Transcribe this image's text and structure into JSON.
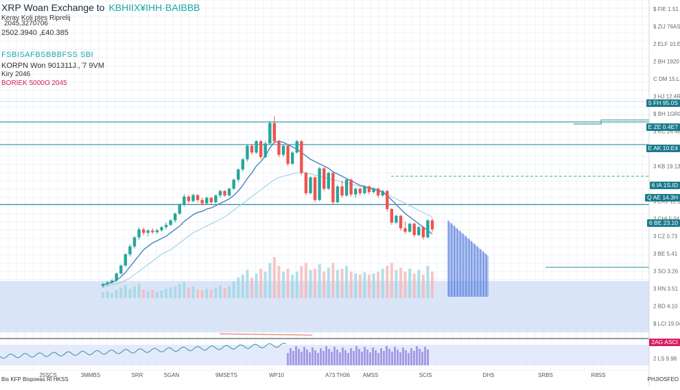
{
  "header": {
    "title": "XRP Woan  Exchange to",
    "title_accent": "KBHIIX¥IHH·BAIBBB",
    "line2": "2045,3270706",
    "line3": "2502.3940 ,£40.385",
    "subtitle": "Keray Koli ptes Riprelij",
    "ticker_strip": "FSBISAFBSBBBFSS SBI",
    "pair_line_label": "KORPN Won",
    "pair_line_value": "901311Ј.,\u0010 ̈7 9VM",
    "kiry": "Kiry 2046",
    "pink_line": "BORIEK 5000O 2045"
  },
  "colors": {
    "up": "#26a69a",
    "down": "#ef5350",
    "ma_fast": "#4a7fc1",
    "ma_slow": "#9fd4e6",
    "hline": "#2a8fa3",
    "band": "#cfdcf5",
    "badge_teal": "#1b7b8a",
    "badge_red": "#d81b60",
    "volume_purple": "#9b8de0",
    "projection": "#6a8fe8"
  },
  "y_axis_labels": [
    "$ FIE 1.51",
    "$ ZIJ 76AS",
    "2 ELF 10.ES",
    "2 BH 1920",
    "C DM 15.LM",
    "3 HJ 12.4R",
    "$ BH 1GR0",
    "3 KC 24.48",
    "3 FI3 19.55",
    "3 KB 19.13",
    "3 CE 15.97",
    "3 EK1 12.19",
    "2 CHI 5.04",
    "3 CZ 0.73",
    "3 BE 5.41",
    "3 SO 3.26",
    "3 RN 3.51",
    "2 BD 4.10",
    "$ LCI 19.04",
    "$ ES 5.00",
    "2 LS 9.98"
  ],
  "axis_badges": [
    {
      "label": "5 FH 95.0S",
      "kind": "teal"
    },
    {
      "label": "E ZE 0.4E7",
      "kind": "teal"
    },
    {
      "label": "E AK 10.E4",
      "kind": "teal"
    },
    {
      "label": "6 IA 1S.ID",
      "kind": "teal"
    },
    {
      "label": "Q AE 14.3H",
      "kind": "teal"
    },
    {
      "label": "6 BE 23.10",
      "kind": "teal"
    },
    {
      "label": "2AG ASCI",
      "kind": "red"
    }
  ],
  "x_axis_labels": [
    "25SCS",
    "3MMBS",
    "SRR",
    "SGAN",
    "9MSETS",
    "WP10",
    "A73 TH36",
    "AMSS",
    "SCIS",
    "DHS",
    "SRBS",
    "R8SS"
  ],
  "bottom_left_label": "Bis KFP Bispoeas Rl HKSS",
  "bottom_right_label": "PHJIOSFEO",
  "chart_data": {
    "type": "candlestick",
    "title": "XRP Woan  Exchange to",
    "ylim": [
      0,
      100
    ],
    "candles": [
      {
        "o": 16.0,
        "h": 17.5,
        "l": 15.2,
        "c": 16.8
      },
      {
        "o": 16.8,
        "h": 18.2,
        "l": 16.0,
        "c": 17.6
      },
      {
        "o": 17.6,
        "h": 19.0,
        "l": 17.0,
        "c": 18.4
      },
      {
        "o": 18.4,
        "h": 22.0,
        "l": 18.0,
        "c": 21.5
      },
      {
        "o": 21.5,
        "h": 25.5,
        "l": 21.0,
        "c": 25.0
      },
      {
        "o": 25.0,
        "h": 30.5,
        "l": 24.5,
        "c": 30.0
      },
      {
        "o": 30.0,
        "h": 34.5,
        "l": 29.0,
        "c": 33.5
      },
      {
        "o": 33.5,
        "h": 38.0,
        "l": 32.5,
        "c": 37.5
      },
      {
        "o": 37.5,
        "h": 42.0,
        "l": 36.5,
        "c": 41.0
      },
      {
        "o": 41.0,
        "h": 41.8,
        "l": 38.5,
        "c": 39.5
      },
      {
        "o": 39.5,
        "h": 41.0,
        "l": 38.0,
        "c": 40.5
      },
      {
        "o": 40.5,
        "h": 41.5,
        "l": 39.0,
        "c": 39.8
      },
      {
        "o": 39.8,
        "h": 41.2,
        "l": 39.0,
        "c": 40.6
      },
      {
        "o": 40.6,
        "h": 42.5,
        "l": 40.0,
        "c": 42.0
      },
      {
        "o": 42.0,
        "h": 44.0,
        "l": 41.0,
        "c": 43.0
      },
      {
        "o": 43.0,
        "h": 45.5,
        "l": 42.5,
        "c": 45.0
      },
      {
        "o": 45.0,
        "h": 48.5,
        "l": 44.0,
        "c": 48.0
      },
      {
        "o": 48.0,
        "h": 52.5,
        "l": 47.5,
        "c": 52.0
      },
      {
        "o": 52.0,
        "h": 56.5,
        "l": 51.0,
        "c": 55.5
      },
      {
        "o": 55.5,
        "h": 56.0,
        "l": 52.5,
        "c": 53.5
      },
      {
        "o": 53.5,
        "h": 56.8,
        "l": 53.0,
        "c": 56.2
      },
      {
        "o": 56.2,
        "h": 56.5,
        "l": 53.0,
        "c": 54.0
      },
      {
        "o": 54.0,
        "h": 55.0,
        "l": 51.5,
        "c": 52.5
      },
      {
        "o": 52.5,
        "h": 55.5,
        "l": 52.0,
        "c": 55.0
      },
      {
        "o": 55.0,
        "h": 55.2,
        "l": 52.0,
        "c": 53.0
      },
      {
        "o": 53.0,
        "h": 56.5,
        "l": 52.5,
        "c": 56.0
      },
      {
        "o": 56.0,
        "h": 58.5,
        "l": 55.0,
        "c": 58.0
      },
      {
        "o": 58.0,
        "h": 58.3,
        "l": 55.5,
        "c": 56.0
      },
      {
        "o": 56.0,
        "h": 59.5,
        "l": 55.5,
        "c": 59.0
      },
      {
        "o": 59.0,
        "h": 63.5,
        "l": 58.5,
        "c": 63.0
      },
      {
        "o": 63.0,
        "h": 68.0,
        "l": 62.0,
        "c": 67.5
      },
      {
        "o": 67.5,
        "h": 72.5,
        "l": 66.5,
        "c": 72.0
      },
      {
        "o": 72.0,
        "h": 78.5,
        "l": 71.0,
        "c": 78.0
      },
      {
        "o": 78.0,
        "h": 78.8,
        "l": 74.0,
        "c": 75.0
      },
      {
        "o": 75.0,
        "h": 80.5,
        "l": 74.5,
        "c": 80.0
      },
      {
        "o": 80.0,
        "h": 80.5,
        "l": 72.0,
        "c": 73.0
      },
      {
        "o": 73.0,
        "h": 80.0,
        "l": 72.5,
        "c": 79.0
      },
      {
        "o": 79.0,
        "h": 89.0,
        "l": 78.5,
        "c": 88.0
      },
      {
        "o": 88.0,
        "h": 91.0,
        "l": 79.0,
        "c": 80.0
      },
      {
        "o": 80.0,
        "h": 80.5,
        "l": 73.0,
        "c": 74.0
      },
      {
        "o": 74.0,
        "h": 78.5,
        "l": 73.0,
        "c": 78.0
      },
      {
        "o": 78.0,
        "h": 78.5,
        "l": 69.0,
        "c": 70.0
      },
      {
        "o": 70.0,
        "h": 75.5,
        "l": 69.5,
        "c": 75.0
      },
      {
        "o": 75.0,
        "h": 80.5,
        "l": 74.5,
        "c": 80.0
      },
      {
        "o": 80.0,
        "h": 80.5,
        "l": 65.0,
        "c": 66.0
      },
      {
        "o": 66.0,
        "h": 66.5,
        "l": 56.0,
        "c": 57.0
      },
      {
        "o": 57.0,
        "h": 64.5,
        "l": 56.5,
        "c": 64.0
      },
      {
        "o": 64.0,
        "h": 64.5,
        "l": 53.0,
        "c": 54.0
      },
      {
        "o": 54.0,
        "h": 68.5,
        "l": 53.5,
        "c": 68.0
      },
      {
        "o": 68.0,
        "h": 68.5,
        "l": 58.0,
        "c": 59.0
      },
      {
        "o": 59.0,
        "h": 66.5,
        "l": 58.5,
        "c": 66.0
      },
      {
        "o": 66.0,
        "h": 66.5,
        "l": 52.0,
        "c": 53.0
      },
      {
        "o": 53.0,
        "h": 60.5,
        "l": 52.5,
        "c": 60.0
      },
      {
        "o": 60.0,
        "h": 62.5,
        "l": 55.0,
        "c": 56.0
      },
      {
        "o": 56.0,
        "h": 63.5,
        "l": 55.5,
        "c": 63.0
      },
      {
        "o": 63.0,
        "h": 63.5,
        "l": 55.5,
        "c": 56.5
      },
      {
        "o": 56.5,
        "h": 59.5,
        "l": 55.0,
        "c": 59.0
      },
      {
        "o": 59.0,
        "h": 59.5,
        "l": 56.0,
        "c": 57.0
      },
      {
        "o": 57.0,
        "h": 60.5,
        "l": 56.5,
        "c": 60.0
      },
      {
        "o": 60.0,
        "h": 60.5,
        "l": 56.5,
        "c": 57.5
      },
      {
        "o": 57.5,
        "h": 59.5,
        "l": 57.0,
        "c": 59.0
      },
      {
        "o": 59.0,
        "h": 59.5,
        "l": 55.0,
        "c": 56.0
      },
      {
        "o": 56.0,
        "h": 58.5,
        "l": 55.5,
        "c": 58.0
      },
      {
        "o": 58.0,
        "h": 58.5,
        "l": 49.0,
        "c": 50.0
      },
      {
        "o": 50.0,
        "h": 50.5,
        "l": 43.0,
        "c": 44.0
      },
      {
        "o": 44.0,
        "h": 47.5,
        "l": 43.5,
        "c": 47.0
      },
      {
        "o": 47.0,
        "h": 47.5,
        "l": 40.5,
        "c": 41.5
      },
      {
        "o": 41.5,
        "h": 44.5,
        "l": 39.0,
        "c": 40.0
      },
      {
        "o": 40.0,
        "h": 44.0,
        "l": 39.5,
        "c": 43.5
      },
      {
        "o": 43.5,
        "h": 44.0,
        "l": 37.5,
        "c": 38.5
      },
      {
        "o": 38.5,
        "h": 42.5,
        "l": 38.0,
        "c": 42.0
      },
      {
        "o": 42.0,
        "h": 42.5,
        "l": 36.5,
        "c": 37.5
      },
      {
        "o": 37.5,
        "h": 45.5,
        "l": 37.0,
        "c": 45.0
      },
      {
        "o": 45.0,
        "h": 46.0,
        "l": 40.0,
        "c": 41.0
      }
    ],
    "ma_fast": [
      16.5,
      17.0,
      17.5,
      18.5,
      20.0,
      22.0,
      24.5,
      27.0,
      29.5,
      32.0,
      33.5,
      35.0,
      36.0,
      37.0,
      38.0,
      39.5,
      41.0,
      42.5,
      44.5,
      46.0,
      47.5,
      48.5,
      49.0,
      50.0,
      50.5,
      51.5,
      52.5,
      53.5,
      54.5,
      56.0,
      58.0,
      60.5,
      63.5,
      66.0,
      69.0,
      71.0,
      73.5,
      77.0,
      79.5,
      80.0,
      79.5,
      78.5,
      77.5,
      76.5,
      75.0,
      73.5,
      72.0,
      71.0,
      70.0,
      69.0,
      68.0,
      66.5,
      65.5,
      64.5,
      63.5,
      62.5,
      61.5,
      60.5,
      60.0,
      59.5,
      59.0,
      58.5,
      57.5,
      56.0,
      54.0,
      52.0,
      50.0,
      48.0,
      46.5,
      45.0,
      43.5,
      42.0,
      40.5,
      39.0
    ],
    "ma_slow": [
      15.5,
      16.0,
      16.5,
      17.0,
      17.5,
      18.5,
      19.5,
      21.0,
      22.5,
      24.0,
      25.5,
      27.0,
      28.5,
      30.0,
      31.0,
      32.0,
      33.5,
      35.0,
      36.5,
      38.0,
      39.5,
      40.5,
      41.5,
      42.5,
      43.5,
      44.5,
      45.5,
      46.5,
      48.0,
      49.5,
      51.0,
      52.5,
      54.0,
      55.5,
      57.0,
      58.5,
      60.0,
      61.5,
      63.0,
      64.0,
      64.5,
      65.0,
      65.5,
      66.0,
      66.0,
      66.0,
      65.5,
      65.0,
      64.5,
      64.0,
      63.5,
      63.0,
      62.5,
      62.0,
      61.5,
      61.0,
      60.5,
      60.0,
      59.5,
      59.0,
      58.5,
      58.0,
      57.5,
      56.5,
      55.5,
      54.5,
      53.5,
      52.5,
      51.5,
      50.5,
      49.5,
      48.5,
      47.5,
      46.5
    ],
    "volume": [
      10,
      12,
      9,
      14,
      18,
      22,
      16,
      20,
      25,
      15,
      12,
      14,
      11,
      13,
      16,
      18,
      20,
      24,
      28,
      18,
      20,
      15,
      14,
      16,
      15,
      18,
      22,
      17,
      20,
      28,
      35,
      40,
      48,
      35,
      42,
      50,
      45,
      60,
      70,
      55,
      45,
      50,
      40,
      45,
      55,
      60,
      48,
      50,
      58,
      45,
      52,
      60,
      48,
      50,
      55,
      45,
      42,
      40,
      44,
      40,
      42,
      45,
      50,
      55,
      60,
      48,
      52,
      45,
      50,
      42,
      48,
      40,
      55,
      45
    ],
    "horizontal_levels": [
      88.5,
      78.5,
      52.0
    ],
    "dashed_level": 64.5,
    "projection": {
      "from": 45.0,
      "to": 29.0
    }
  }
}
